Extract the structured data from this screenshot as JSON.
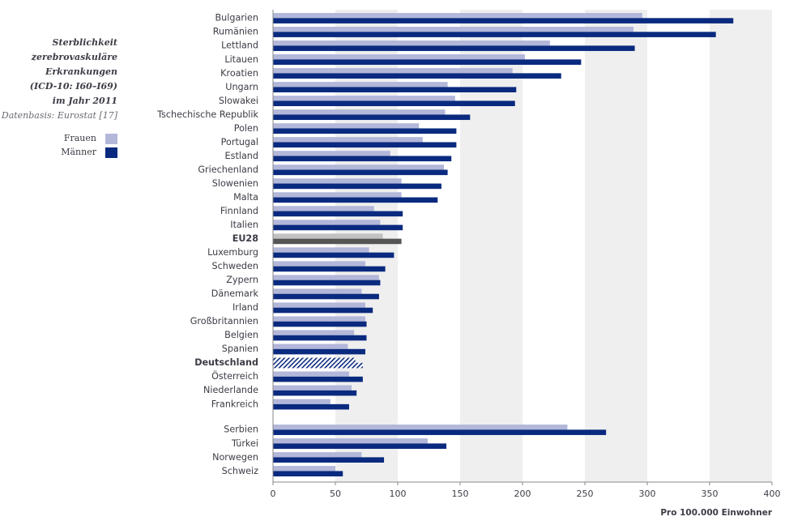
{
  "sidebar": {
    "title_lines": [
      "Sterblichkeit",
      "zerebrovaskuläre",
      "Erkrankungen",
      "(ICD-10: I60–I69)",
      "im Jahr 2011"
    ],
    "source": "Datenbasis: Eurostat [17]"
  },
  "legend": {
    "items": [
      {
        "label": "Frauen",
        "color": "#b3b7d9"
      },
      {
        "label": "Männer",
        "color": "#0a2a7f"
      }
    ]
  },
  "colors": {
    "women": "#b3b7d9",
    "men": "#0a2a7f",
    "eu_women": "#c2c2c2",
    "eu_men": "#555555",
    "band": "#efefef",
    "axis": "#888888"
  },
  "chart_data": {
    "type": "bar",
    "orientation": "horizontal",
    "xlabel": "Pro 100.000 Einwohner",
    "xlim": [
      0,
      400
    ],
    "xticks": [
      0,
      50,
      100,
      150,
      200,
      250,
      300,
      350,
      400
    ],
    "categories": [
      "Bulgarien",
      "Rumänien",
      "Lettland",
      "Litauen",
      "Kroatien",
      "Ungarn",
      "Slowakei",
      "Tschechische Republik",
      "Polen",
      "Portugal",
      "Estland",
      "Griechenland",
      "Slowenien",
      "Malta",
      "Finnland",
      "Italien",
      "EU28",
      "Luxemburg",
      "Schweden",
      "Zypern",
      "Dänemark",
      "Irland",
      "Großbritannien",
      "Belgien",
      "Spanien",
      "Deutschland",
      "Österreich",
      "Niederlande",
      "Frankreich",
      "Serbien",
      "Türkei",
      "Norwegen",
      "Schweiz"
    ],
    "highlight": [
      "EU28",
      "Deutschland"
    ],
    "group_break_before": "Serbien",
    "series": [
      {
        "name": "Frauen",
        "values": [
          296,
          289,
          222,
          202,
          192,
          140,
          146,
          138,
          117,
          120,
          94,
          137,
          103,
          103,
          81,
          86,
          88,
          77,
          74,
          85,
          71,
          74,
          74,
          65,
          60,
          66,
          61,
          63,
          46,
          236,
          124,
          71,
          50
        ]
      },
      {
        "name": "Männer",
        "values": [
          369,
          355,
          290,
          247,
          231,
          195,
          194,
          158,
          147,
          147,
          143,
          140,
          135,
          132,
          104,
          104,
          103,
          97,
          90,
          86,
          85,
          80,
          75,
          75,
          74,
          72,
          72,
          67,
          61,
          267,
          139,
          89,
          56
        ]
      }
    ]
  }
}
